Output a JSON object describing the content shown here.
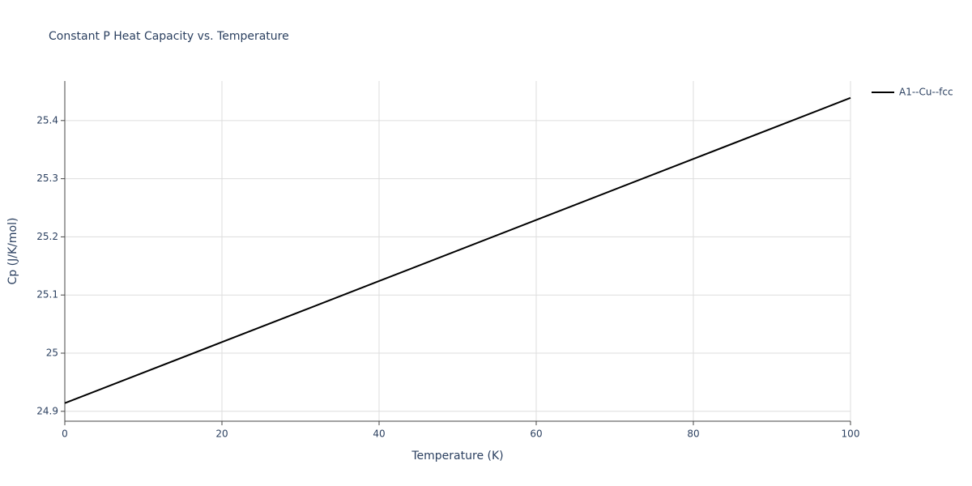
{
  "chart_data": {
    "type": "line",
    "title": "Constant P Heat Capacity vs. Temperature",
    "x_label": "Temperature (K)",
    "y_label": "Cp (J/K/mol)",
    "x": [
      0,
      20,
      40,
      60,
      80,
      100
    ],
    "series": [
      {
        "name": "A1--Cu--fcc",
        "color": "#000000",
        "values": [
          24.914,
          25.019,
          25.124,
          25.229,
          25.334,
          25.439
        ]
      }
    ],
    "xlim": [
      0,
      100
    ],
    "xticks": [
      0,
      20,
      40,
      60,
      80,
      100
    ],
    "ylim": [
      24.883,
      25.468
    ],
    "yticks": [
      24.9,
      25,
      25.1,
      25.2,
      25.3,
      25.4
    ],
    "grid": true,
    "legend": "right"
  }
}
